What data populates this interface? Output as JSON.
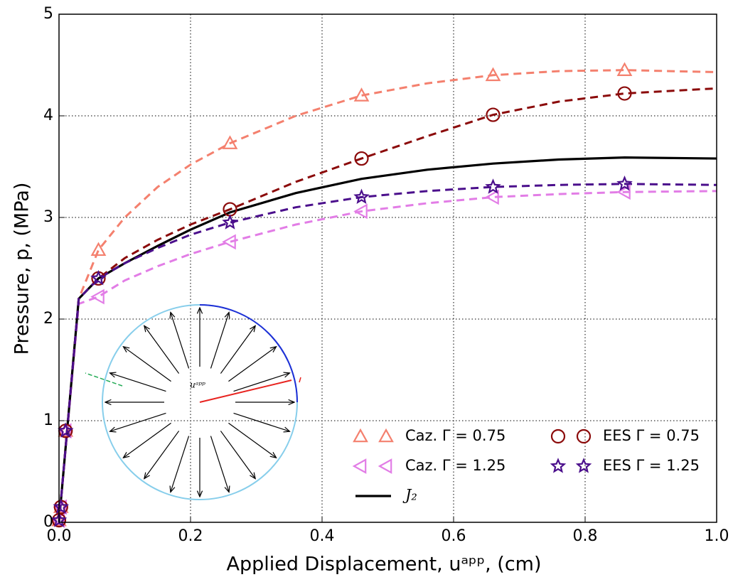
{
  "chart_data": {
    "type": "line",
    "xlabel": "Applied Displacement, uᵃᵖᵖ, (cm)",
    "ylabel": "Pressure, p, (MPa)",
    "inset_label": "uᵃᵖᵖ",
    "xlim": [
      0,
      1
    ],
    "ylim": [
      0,
      5
    ],
    "xticks": [
      {
        "value": 0,
        "label": "0.0"
      },
      0.2,
      0.4,
      0.6,
      0.8,
      {
        "value": 1,
        "label": "1.0"
      }
    ],
    "yticks": [
      0,
      1,
      2,
      3,
      4,
      5
    ],
    "grid": true,
    "legend": "lower right",
    "x": [
      0,
      0.03,
      0.06,
      0.1,
      0.15,
      0.2,
      0.26,
      0.36,
      0.46,
      0.56,
      0.66,
      0.76,
      0.86,
      1.0
    ],
    "marker_x": [
      0,
      0.003,
      0.01,
      0.06,
      0.26,
      0.46,
      0.66,
      0.86
    ],
    "series": [
      {
        "name": "Caz. Γ = 0.75",
        "color": "#f4806e",
        "dash": true,
        "marker": "triangle-up",
        "values": [
          0,
          2.2,
          2.68,
          3.0,
          3.3,
          3.52,
          3.73,
          4.0,
          4.2,
          4.32,
          4.4,
          4.44,
          4.45,
          4.43
        ],
        "marker_values": [
          0.02,
          0.15,
          0.9,
          2.68,
          3.73,
          4.2,
          4.4,
          4.45
        ]
      },
      {
        "name": "Caz. Γ = 1.25",
        "color": "#e27de6",
        "dash": true,
        "marker": "triangle-left",
        "values": [
          0,
          2.15,
          2.22,
          2.38,
          2.52,
          2.64,
          2.76,
          2.93,
          3.06,
          3.14,
          3.2,
          3.23,
          3.25,
          3.26
        ],
        "marker_values": [
          0.02,
          0.15,
          0.9,
          2.22,
          2.76,
          3.06,
          3.2,
          3.25
        ]
      },
      {
        "name": "J₂",
        "color": "#000000",
        "dash": false,
        "marker": null,
        "values": [
          0,
          2.2,
          2.4,
          2.55,
          2.72,
          2.88,
          3.05,
          3.24,
          3.38,
          3.47,
          3.53,
          3.57,
          3.59,
          3.58
        ]
      },
      {
        "name": "EES Γ = 0.75",
        "color": "#8b0a0a",
        "dash": true,
        "marker": "circle",
        "values": [
          0,
          2.2,
          2.4,
          2.6,
          2.78,
          2.93,
          3.08,
          3.35,
          3.58,
          3.8,
          4.01,
          4.14,
          4.22,
          4.27
        ],
        "marker_values": [
          0.02,
          0.15,
          0.9,
          2.4,
          3.08,
          3.58,
          4.01,
          4.22
        ]
      },
      {
        "name": "EES Γ = 1.25",
        "color": "#4b0f8c",
        "dash": true,
        "marker": "star",
        "values": [
          0,
          2.2,
          2.4,
          2.55,
          2.7,
          2.83,
          2.95,
          3.1,
          3.2,
          3.26,
          3.3,
          3.32,
          3.33,
          3.32
        ],
        "marker_values": [
          0.02,
          0.15,
          0.9,
          2.4,
          2.95,
          3.2,
          3.3,
          3.33
        ]
      }
    ]
  }
}
